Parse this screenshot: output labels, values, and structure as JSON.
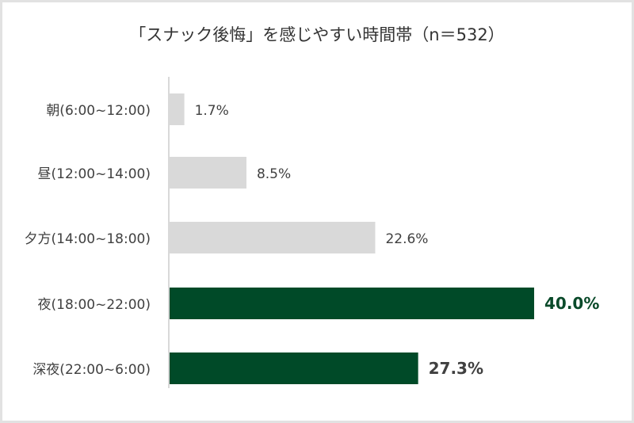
{
  "chart_data": {
    "type": "bar",
    "orientation": "horizontal",
    "title": "「スナック後悔」を感じやすい時間帯（n＝532）",
    "categories": [
      "朝(6:00~12:00)",
      "昼(12:00~14:00)",
      "夕方(14:00~18:00)",
      "夜(18:00~22:00)",
      "深夜(22:00~6:00)"
    ],
    "values": [
      1.7,
      8.5,
      22.6,
      40.0,
      27.3
    ],
    "value_labels": [
      "1.7%",
      "8.5%",
      "22.6%",
      "40.0%",
      "27.3%"
    ],
    "highlighted": [
      false,
      false,
      false,
      true,
      true
    ],
    "colors": {
      "default": "#d9d9d9",
      "highlight": "#004a28",
      "highlight_label": "#0a4a2a",
      "label": "#404040",
      "axis": "#d9d9d9"
    },
    "xlim": [
      0,
      40
    ],
    "grid": false,
    "legend": "none"
  }
}
